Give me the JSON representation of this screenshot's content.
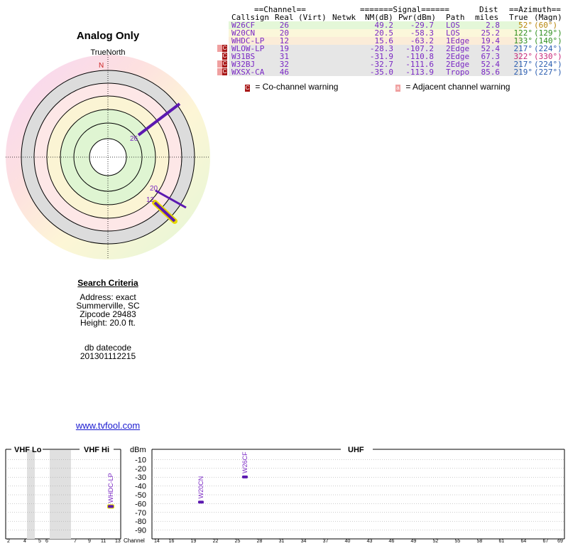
{
  "page": {
    "title": "Analog Only"
  },
  "polar": {
    "north_label": "TrueNorth",
    "n_marker": "N",
    "line_labels": [
      "26",
      "20",
      "12"
    ]
  },
  "table": {
    "group_headers": {
      "channel": "==Channel==",
      "signal": "=======Signal======",
      "dist": "Dist",
      "azimuth": "==Azimuth=="
    },
    "col_headers": {
      "callsign": "Callsign",
      "real": "Real",
      "virt": "(Virt)",
      "netwk": "Netwk",
      "nm": "NM(dB)",
      "pwr": "Pwr(dBm)",
      "path": "Path",
      "miles": "miles",
      "true": "True",
      "magn": "(Magn)"
    },
    "rows": [
      {
        "callsign": "W26CF",
        "real": "26",
        "nm": "49.2",
        "pwr": "-29.7",
        "path": "LOS",
        "dist": "2.8",
        "true": "52°",
        "magn": "(60°)",
        "bg": "#e4f7d8",
        "color": "#7a28c4",
        "azcolor": "#b8860b",
        "warn": ""
      },
      {
        "callsign": "W20CN",
        "real": "20",
        "nm": "20.5",
        "pwr": "-58.3",
        "path": "LOS",
        "dist": "25.2",
        "true": "122°",
        "magn": "(129°)",
        "bg": "#fbf7da",
        "color": "#7a28c4",
        "azcolor": "#2f8f1f",
        "warn": ""
      },
      {
        "callsign": "WHDC-LP",
        "real": "12",
        "nm": "15.6",
        "pwr": "-63.2",
        "path": "1Edge",
        "dist": "19.4",
        "true": "133°",
        "magn": "(140°)",
        "bg": "#fbecd8",
        "color": "#7a28c4",
        "azcolor": "#2f8f1f",
        "warn": ""
      },
      {
        "callsign": "WLOW-LP",
        "real": "19",
        "nm": "-28.3",
        "pwr": "-107.2",
        "path": "2Edge",
        "dist": "52.4",
        "true": "217°",
        "magn": "(224°)",
        "bg": "#e6e6e6",
        "color": "#7a28c4",
        "azcolor": "#2a5db0",
        "warn": "aC"
      },
      {
        "callsign": "W31BS",
        "real": "31",
        "nm": "-31.9",
        "pwr": "-110.8",
        "path": "2Edge",
        "dist": "67.3",
        "true": "322°",
        "magn": "(330°)",
        "bg": "#e6e6e6",
        "color": "#7a28c4",
        "azcolor": "#c8287a",
        "warn": "C"
      },
      {
        "callsign": "W32BJ",
        "real": "32",
        "nm": "-32.7",
        "pwr": "-111.6",
        "path": "2Edge",
        "dist": "52.4",
        "true": "217°",
        "magn": "(224°)",
        "bg": "#e6e6e6",
        "color": "#7a28c4",
        "azcolor": "#2a5db0",
        "warn": "aC"
      },
      {
        "callsign": "WXSX-CA",
        "real": "46",
        "nm": "-35.0",
        "pwr": "-113.9",
        "path": "Tropo",
        "dist": "85.6",
        "true": "219°",
        "magn": "(227°)",
        "bg": "#e6e6e6",
        "color": "#7a28c4",
        "azcolor": "#2a5db0",
        "warn": "aC"
      }
    ],
    "legend": {
      "co_symbol": "C",
      "co_text": "= Co-channel warning",
      "adj_symbol": "a",
      "adj_text": "= Adjacent channel warning"
    }
  },
  "search": {
    "title": "Search Criteria",
    "address": "Address: exact",
    "city": "Summerville, SC",
    "zip": "Zipcode 29483",
    "height": "Height: 20.0 ft.",
    "db_label": "db datecode",
    "db_value": "201301112215"
  },
  "link": {
    "text": "www.tvfool.com"
  },
  "spectrum": {
    "vhf_lo": "VHF Lo",
    "vhf_hi": "VHF Hi",
    "uhf": "UHF",
    "dbm": "dBm",
    "channel_label": "Channel",
    "dbm_ticks": [
      "-10",
      "-20",
      "-30",
      "-40",
      "-50",
      "-60",
      "-70",
      "-80",
      "-90"
    ],
    "vhf_channels": [
      "2",
      "4",
      "5",
      "6",
      "7",
      "9",
      "11",
      "13"
    ],
    "uhf_channels": [
      "14",
      "16",
      "19",
      "22",
      "25",
      "28",
      "31",
      "34",
      "37",
      "40",
      "43",
      "46",
      "49",
      "52",
      "55",
      "58",
      "61",
      "64",
      "67",
      "69"
    ],
    "stations": [
      {
        "callsign": "WHDC-LP",
        "channel": "12",
        "dbm": -63.2
      },
      {
        "callsign": "W20CN",
        "channel": "20",
        "dbm": -58.3
      },
      {
        "callsign": "W26CF",
        "channel": "26",
        "dbm": -29.7
      }
    ]
  }
}
